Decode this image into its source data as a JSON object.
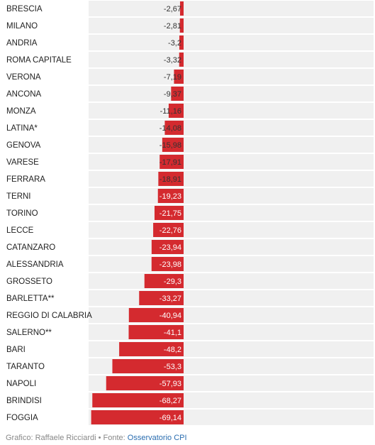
{
  "chart_data": {
    "type": "bar",
    "orientation": "horizontal",
    "categories": [
      "BRESCIA",
      "MILANO",
      "ANDRIA",
      "ROMA CAPITALE",
      "VERONA",
      "ANCONA",
      "MONZA",
      "LATINA*",
      "GENOVA",
      "VARESE",
      "FERRARA",
      "TERNI",
      "TORINO",
      "LECCE",
      "CATANZARO",
      "ALESSANDRIA",
      "GROSSETO",
      "BARLETTA**",
      "REGGIO DI CALABRIA",
      "SALERNO**",
      "BARI",
      "TARANTO",
      "NAPOLI",
      "BRINDISI",
      "FOGGIA"
    ],
    "values": [
      -2.67,
      -2.81,
      -3.2,
      -3.32,
      -7.19,
      -9.37,
      -11.16,
      -14.08,
      -15.98,
      -17.91,
      -18.91,
      -19.23,
      -21.75,
      -22.76,
      -23.94,
      -23.98,
      -29.3,
      -33.27,
      -40.94,
      -41.1,
      -48.2,
      -53.3,
      -57.93,
      -68.27,
      -69.14
    ],
    "value_labels": [
      "-2,67",
      "-2,81",
      "-3,2",
      "-3,32",
      "-7,19",
      "-9,37",
      "-11,16",
      "-14,08",
      "-15,98",
      "-17,91",
      "-18,91",
      "-19,23",
      "-21,75",
      "-22,76",
      "-23,94",
      "-23,98",
      "-29,3",
      "-33,27",
      "-40,94",
      "-41,1",
      "-48,2",
      "-53,3",
      "-57,93",
      "-68,27",
      "-69,14"
    ],
    "xlim": [
      -70,
      70
    ],
    "colors": {
      "bar": "#d42a2f",
      "row_background": "#f0f0f0",
      "label_dark": "#333333",
      "label_light": "#ffffff"
    }
  },
  "footer": {
    "credit": "Grafico: Raffaele Ricciardi • Fonte: ",
    "source_link": "Osservatorio CPI"
  }
}
